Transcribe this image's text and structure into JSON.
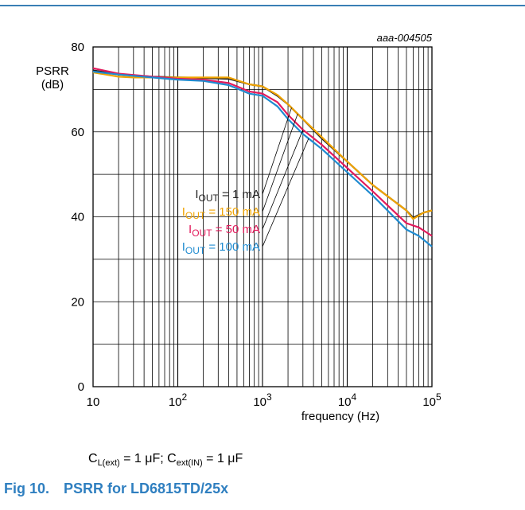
{
  "chart_data": {
    "type": "line",
    "code": "aaa-004505",
    "ylabel_line1": "PSRR",
    "ylabel_line2": "(dB)",
    "xlabel": "frequency (Hz)",
    "xscale": "log",
    "xlim": [
      10,
      100000
    ],
    "ylim": [
      0,
      80
    ],
    "grid": true,
    "y_ticks": [
      "0",
      "20",
      "40",
      "60",
      "80"
    ],
    "x_ticks": [
      {
        "value": 10,
        "base": "10",
        "exp": ""
      },
      {
        "value": 100,
        "base": "10",
        "exp": "2"
      },
      {
        "value": 1000,
        "base": "10",
        "exp": "3"
      },
      {
        "value": 10000,
        "base": "10",
        "exp": "4"
      },
      {
        "value": 100000,
        "base": "10",
        "exp": "5"
      }
    ],
    "series": [
      {
        "name": "IOUT = 1 mA",
        "color": "#222222",
        "x": [
          10,
          20,
          50,
          100,
          200,
          400,
          700,
          1000,
          1500,
          2000,
          3000,
          5000,
          10000,
          20000,
          50000,
          60000,
          80000,
          100000
        ],
        "y": [
          74.5,
          73.5,
          73,
          72.8,
          72.7,
          72.5,
          71.2,
          70.7,
          68.5,
          66.5,
          63,
          58.5,
          53,
          47.5,
          41.5,
          39.8,
          41,
          41.5
        ]
      },
      {
        "name": "IOUT = 150 mA",
        "color": "#f0a300",
        "x": [
          10,
          20,
          30,
          50,
          100,
          200,
          400,
          700,
          1000,
          1500,
          2000,
          3000,
          5000,
          10000,
          20000,
          50000,
          60000,
          80000,
          100000
        ],
        "y": [
          74,
          73,
          72.8,
          72.8,
          72.8,
          72.8,
          72.8,
          71.2,
          70.7,
          68.7,
          66.5,
          63,
          58.8,
          53,
          47.5,
          41.5,
          39.5,
          41,
          41.5
        ]
      },
      {
        "name": "IOUT = 50 mA",
        "color": "#e2195b",
        "x": [
          10,
          20,
          50,
          100,
          200,
          400,
          700,
          1000,
          1500,
          2000,
          3000,
          5000,
          10000,
          20000,
          50000,
          70000,
          100000
        ],
        "y": [
          75,
          73.7,
          73,
          72.5,
          72.3,
          71.5,
          69.5,
          69,
          67,
          64,
          60.5,
          57,
          51.5,
          46,
          38.5,
          37.5,
          35.5
        ]
      },
      {
        "name": "IOUT = 100 mA",
        "color": "#1f8bd0",
        "x": [
          10,
          20,
          50,
          100,
          200,
          400,
          700,
          1000,
          1500,
          2000,
          3000,
          5000,
          10000,
          20000,
          50000,
          70000,
          100000
        ],
        "y": [
          74.2,
          73.5,
          72.8,
          72.3,
          72,
          71,
          69,
          68.5,
          66,
          63,
          59.5,
          56,
          50.5,
          45,
          37,
          35.5,
          33
        ]
      }
    ],
    "legend": [
      {
        "sym": "I",
        "sub": "OUT",
        "rest": " =  1 mA",
        "color": "#222222"
      },
      {
        "sym": "I",
        "sub": "OUT",
        "rest": " =  150 mA",
        "color": "#f0a300"
      },
      {
        "sym": "I",
        "sub": "OUT",
        "rest": " =  50 mA",
        "color": "#e2195b"
      },
      {
        "sym": "I",
        "sub": "OUT",
        "rest": " =  100 mA",
        "color": "#1f8bd0"
      }
    ],
    "legend_placement": "center-left, leader lines to curves"
  },
  "caption": {
    "c1": "C",
    "c1_sub": "L(ext)",
    "c1_rest": " = 1 μF; ",
    "c2": "C",
    "c2_sub": "ext(IN)",
    "c2_rest": " = 1 μF"
  },
  "figure": {
    "number": "Fig 10.",
    "title": "PSRR for LD6815TD/25x"
  },
  "colors": {
    "rule": "#3a7fb5",
    "title": "#2f7fc0"
  }
}
